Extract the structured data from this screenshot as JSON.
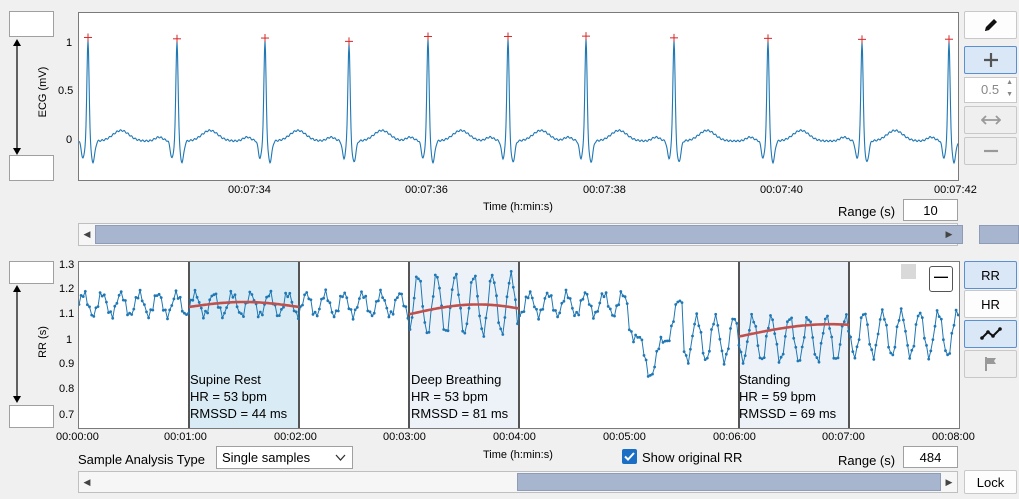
{
  "ecg_panel": {
    "ylabel": "ECG (mV)",
    "xlabel": "Time (h:min:s)",
    "yticks": [
      "1",
      "0.5",
      "0"
    ],
    "xticks": [
      "00:07:34",
      "00:07:36",
      "00:07:38",
      "00:07:40",
      "00:07:42"
    ],
    "range_label": "Range (s)",
    "range_value": "10",
    "ymax_input": "",
    "ymin_input": ""
  },
  "rr_panel": {
    "ylabel": "RR (s)",
    "xlabel": "Time (h:min:s)",
    "yticks": [
      "1.3",
      "1.2",
      "1.1",
      "1",
      "0.9",
      "0.8",
      "0.7"
    ],
    "xticks": [
      "00:00:00",
      "00:01:00",
      "00:02:00",
      "00:03:00",
      "00:04:00",
      "00:05:00",
      "00:06:00",
      "00:07:00",
      "00:08:00"
    ],
    "range_label": "Range (s)",
    "range_value": "484",
    "ymax_input": "",
    "ymin_input": "",
    "segments": [
      {
        "name": "Supine Rest",
        "hr": "HR = 53 bpm",
        "rmssd": "RMSSD = 44 ms"
      },
      {
        "name": "Deep Breathing",
        "hr": "HR = 53 bpm",
        "rmssd": "RMSSD = 81 ms"
      },
      {
        "name": "Standing",
        "hr": "HR = 59 bpm",
        "rmssd": "RMSSD = 69 ms"
      }
    ],
    "minimize_label": "—"
  },
  "controls": {
    "sample_analysis_label": "Sample Analysis Type",
    "sample_analysis_value": "Single samples",
    "show_original_rr_label": "Show original RR",
    "show_original_rr_checked": true,
    "lock_label": "Lock"
  },
  "toolbar": {
    "zoom_step_value": "0.5",
    "rr_button": "RR",
    "hr_button": "HR"
  },
  "colors": {
    "trace": "#1f77b4",
    "smooth": "#c0504d",
    "peak_marker": "#d62728",
    "segment_fill": "#d9ecf5"
  }
}
